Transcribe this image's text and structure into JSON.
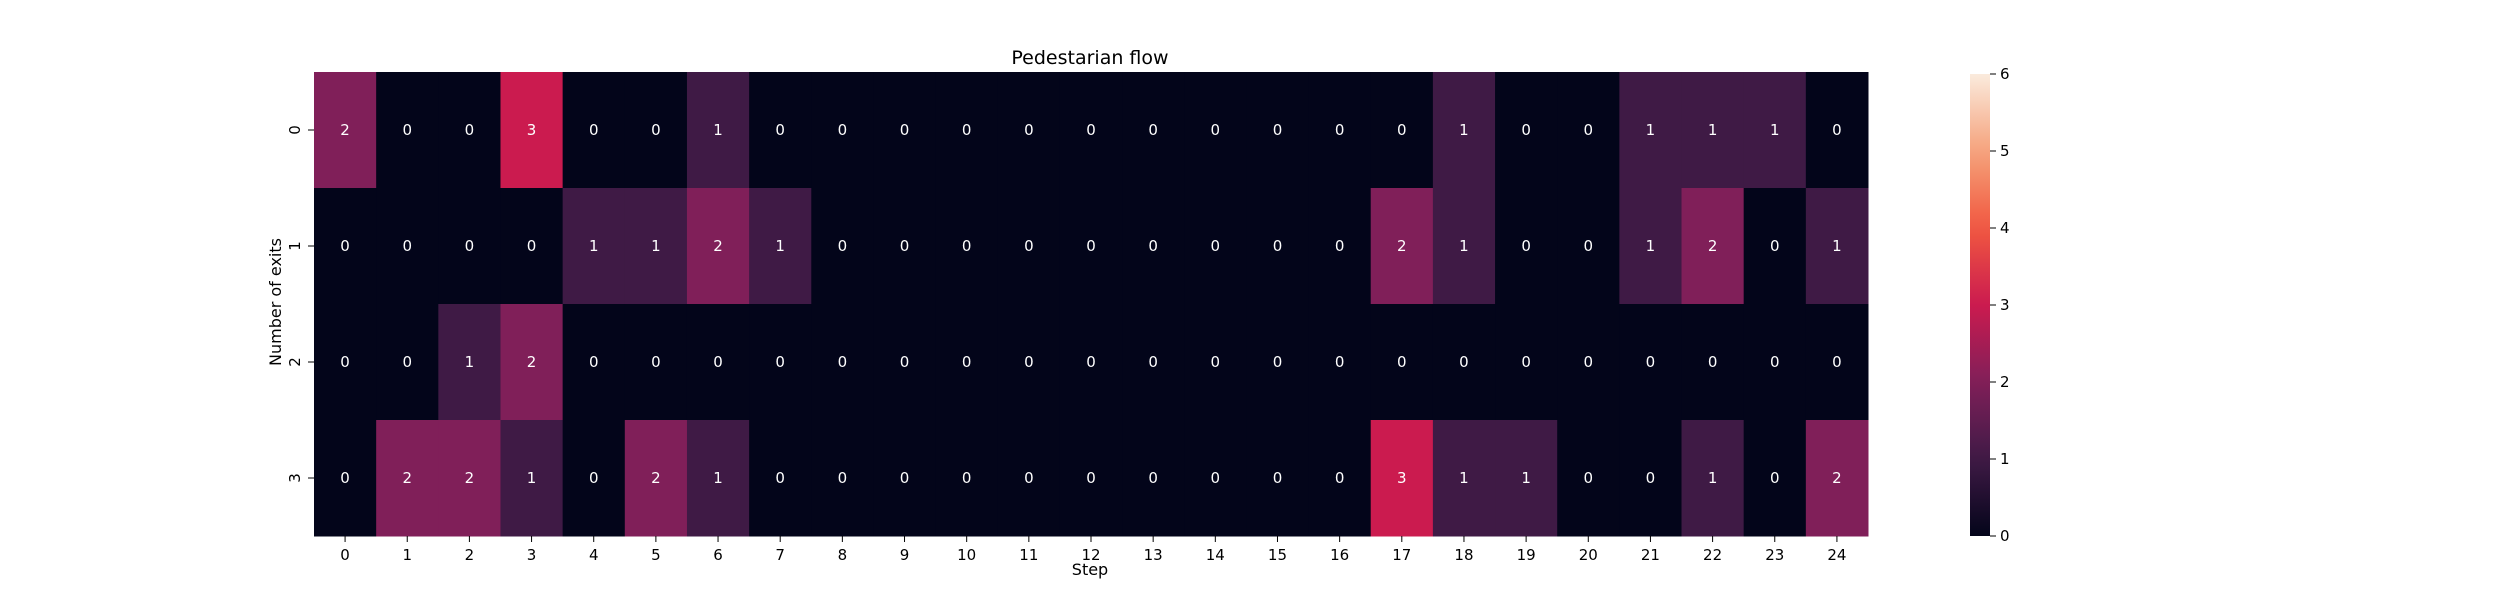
{
  "chart_data": {
    "type": "heatmap",
    "title": "Pedestarian flow",
    "xlabel": "Step",
    "ylabel": "Number of exits",
    "x": [
      "0",
      "1",
      "2",
      "3",
      "4",
      "5",
      "6",
      "7",
      "8",
      "9",
      "10",
      "11",
      "12",
      "13",
      "14",
      "15",
      "16",
      "17",
      "18",
      "19",
      "20",
      "21",
      "22",
      "23",
      "24"
    ],
    "y": [
      "0",
      "1",
      "2",
      "3"
    ],
    "values": [
      [
        2,
        0,
        0,
        3,
        0,
        0,
        1,
        0,
        0,
        0,
        0,
        0,
        0,
        0,
        0,
        0,
        0,
        0,
        1,
        0,
        0,
        1,
        1,
        1,
        0
      ],
      [
        0,
        0,
        0,
        0,
        1,
        1,
        2,
        1,
        0,
        0,
        0,
        0,
        0,
        0,
        0,
        0,
        0,
        2,
        1,
        0,
        0,
        1,
        2,
        0,
        1
      ],
      [
        0,
        0,
        1,
        2,
        0,
        0,
        0,
        0,
        0,
        0,
        0,
        0,
        0,
        0,
        0,
        0,
        0,
        0,
        0,
        0,
        0,
        0,
        0,
        0,
        0
      ],
      [
        0,
        2,
        2,
        1,
        0,
        2,
        1,
        0,
        0,
        0,
        0,
        0,
        0,
        0,
        0,
        0,
        0,
        3,
        1,
        1,
        0,
        0,
        1,
        0,
        2
      ]
    ],
    "vmin": 0,
    "vmax": 6,
    "colorbar_ticks": [
      "0",
      "1",
      "2",
      "3",
      "4",
      "5",
      "6"
    ],
    "colormap": "rocket",
    "annotations": true,
    "grid": false,
    "legend": "colorbar-right"
  }
}
